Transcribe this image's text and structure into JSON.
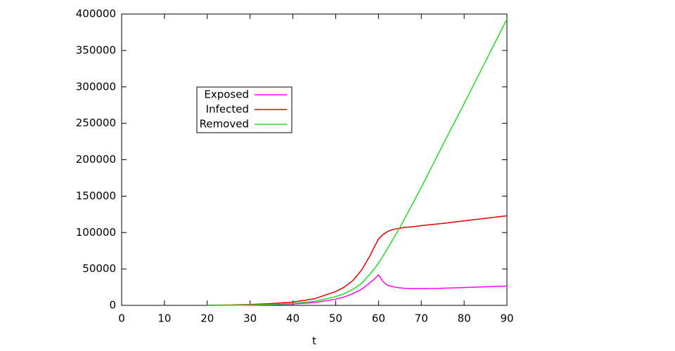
{
  "chart_data": {
    "type": "line",
    "xlabel": "t",
    "x": [
      20,
      25,
      30,
      35,
      40,
      45,
      50,
      52,
      54,
      56,
      58,
      59,
      60,
      61,
      62,
      63,
      64,
      65,
      66,
      68,
      70,
      75,
      80,
      85,
      90
    ],
    "series": [
      {
        "name": "Exposed",
        "color": "#ff00ff",
        "values": [
          50,
          150,
          400,
          900,
          1800,
          3800,
          8500,
          11500,
          16000,
          22000,
          31000,
          36000,
          42000,
          33000,
          28000,
          26000,
          25000,
          24000,
          23500,
          23000,
          23000,
          23500,
          24500,
          25500,
          26500
        ]
      },
      {
        "name": "Infected",
        "color": "#e00000",
        "values": [
          200,
          500,
          1200,
          2500,
          4500,
          9000,
          19000,
          25000,
          34000,
          48000,
          68000,
          80000,
          91000,
          97000,
          101000,
          103500,
          105000,
          106000,
          107000,
          108000,
          109500,
          112500,
          116000,
          119500,
          123000
        ]
      },
      {
        "name": "Removed",
        "color": "#22dd22",
        "values": [
          50,
          200,
          500,
          1200,
          2500,
          5500,
          12000,
          16000,
          22000,
          30000,
          43000,
          50000,
          58000,
          67000,
          77000,
          87000,
          97000,
          107000,
          118000,
          140000,
          162000,
          220000,
          277000,
          335000,
          393000
        ]
      }
    ],
    "xlim": [
      0,
      90
    ],
    "xticks": [
      0,
      10,
      20,
      30,
      40,
      50,
      60,
      70,
      80,
      90
    ],
    "ylim": [
      0,
      400000
    ],
    "yticks": [
      0,
      50000,
      100000,
      150000,
      200000,
      250000,
      300000,
      350000,
      400000
    ],
    "legend": "upper left"
  }
}
